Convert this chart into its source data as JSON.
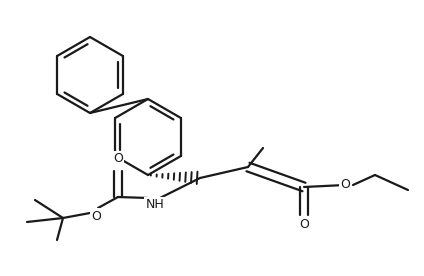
{
  "bg": "#ffffff",
  "lc": "#1a1a1a",
  "lw": 1.6,
  "fs": 8.5,
  "figsize": [
    4.24,
    2.76
  ],
  "dpi": 100,
  "xlim": [
    0,
    424
  ],
  "ylim": [
    0,
    276
  ],
  "r_ring": 38
}
